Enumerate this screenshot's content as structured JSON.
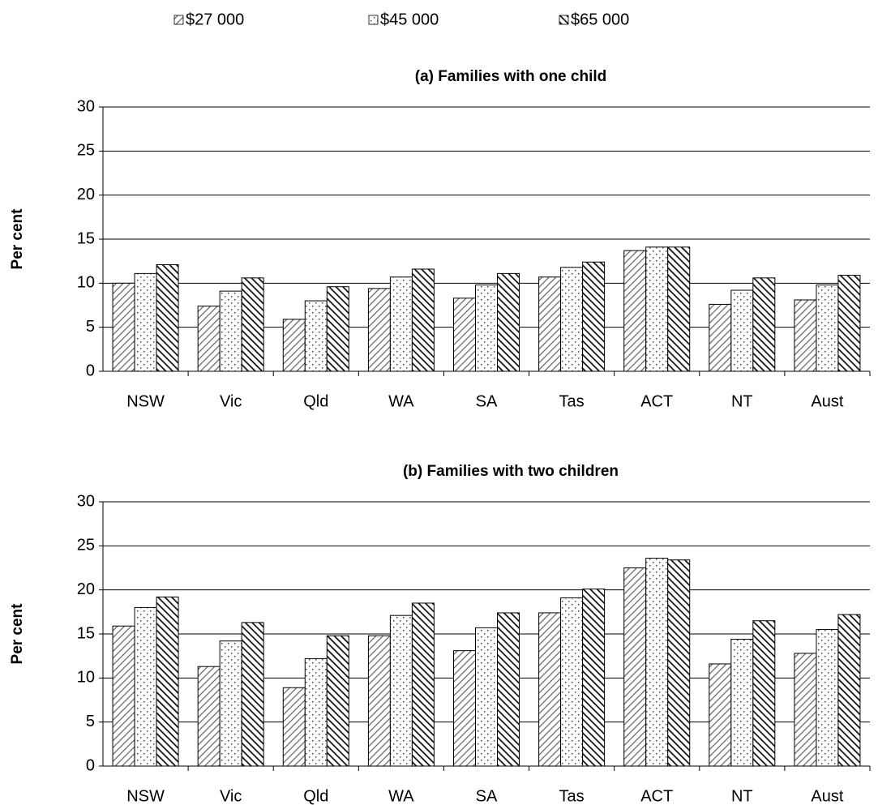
{
  "chart_data": [
    {
      "type": "bar",
      "title": "(a) Families with one child",
      "ylabel": "Per cent",
      "categories": [
        "NSW",
        "Vic",
        "Qld",
        "WA",
        "SA",
        "Tas",
        "ACT",
        "NT",
        "Aust"
      ],
      "series": [
        {
          "name": "$27 000",
          "pattern": "hatch",
          "values": [
            10.0,
            7.4,
            5.9,
            9.4,
            8.3,
            10.7,
            13.7,
            7.6,
            8.1
          ]
        },
        {
          "name": "$45 000",
          "pattern": "dots",
          "values": [
            11.1,
            9.1,
            8.0,
            10.7,
            9.8,
            11.8,
            14.1,
            9.2,
            9.8
          ]
        },
        {
          "name": "$65 000",
          "pattern": "dense-hatch",
          "values": [
            12.1,
            10.6,
            9.6,
            11.6,
            11.1,
            12.4,
            14.1,
            10.6,
            10.9
          ]
        }
      ],
      "ylim": [
        0,
        30
      ],
      "yticks": [
        0,
        5,
        10,
        15,
        20,
        25,
        30
      ],
      "grid": true
    },
    {
      "type": "bar",
      "title": "(b) Families with two children",
      "ylabel": "Per cent",
      "categories": [
        "NSW",
        "Vic",
        "Qld",
        "WA",
        "SA",
        "Tas",
        "ACT",
        "NT",
        "Aust"
      ],
      "series": [
        {
          "pattern": "hatch",
          "values": [
            15.9,
            11.3,
            8.9,
            14.8,
            13.1,
            17.4,
            22.5,
            11.6,
            12.8
          ]
        },
        {
          "pattern": "dots",
          "values": [
            18.0,
            14.2,
            12.2,
            17.1,
            15.7,
            19.1,
            23.6,
            14.4,
            15.5
          ]
        },
        {
          "pattern": "dense-hatch",
          "values": [
            19.2,
            16.3,
            14.8,
            18.5,
            17.4,
            20.1,
            23.4,
            16.5,
            17.2
          ]
        }
      ],
      "ylim": [
        0,
        30
      ],
      "yticks": [
        0,
        5,
        10,
        15,
        20,
        25,
        30
      ],
      "grid": true
    }
  ]
}
